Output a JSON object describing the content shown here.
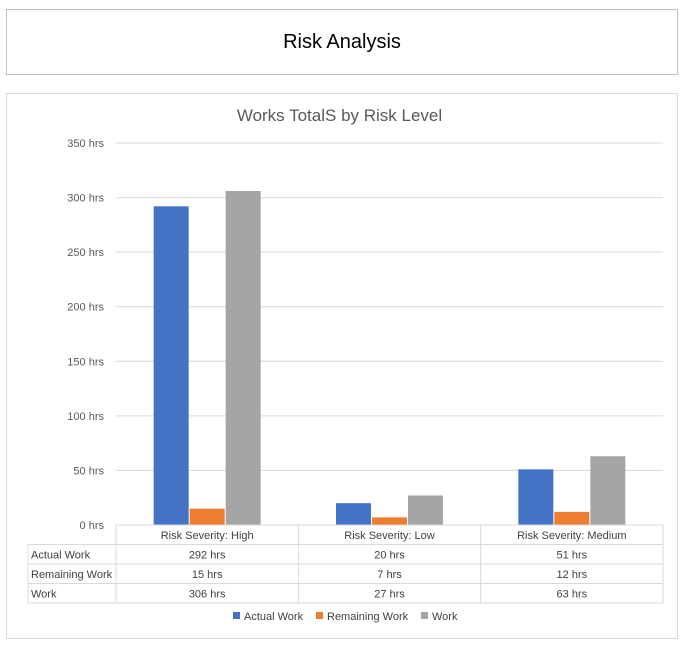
{
  "report": {
    "title": "Risk Analysis"
  },
  "chart_data": {
    "type": "bar",
    "title": "Works TotalS by Risk Level",
    "categories": [
      "Risk Severity: High",
      "Risk Severity: Low",
      "Risk Severity: Medium"
    ],
    "series": [
      {
        "name": "Actual Work",
        "values": [
          292,
          20,
          51
        ],
        "labels": [
          "292 hrs",
          "20 hrs",
          "51 hrs"
        ],
        "color": "#4472c4"
      },
      {
        "name": "Remaining Work",
        "values": [
          15,
          7,
          12
        ],
        "labels": [
          "15 hrs",
          "7 hrs",
          "12 hrs"
        ],
        "color": "#ed7d31"
      },
      {
        "name": "Work",
        "values": [
          306,
          27,
          63
        ],
        "labels": [
          "306 hrs",
          "27 hrs",
          "63 hrs"
        ],
        "color": "#a5a5a5"
      }
    ],
    "ylim": [
      0,
      350
    ],
    "yticks": [
      0,
      50,
      100,
      150,
      200,
      250,
      300,
      350
    ],
    "ytick_labels": [
      "0 hrs",
      "50 hrs",
      "100 hrs",
      "150 hrs",
      "200 hrs",
      "250 hrs",
      "300 hrs",
      "350 hrs"
    ],
    "grid": true,
    "data_table": true,
    "legend_position": "bottom"
  }
}
